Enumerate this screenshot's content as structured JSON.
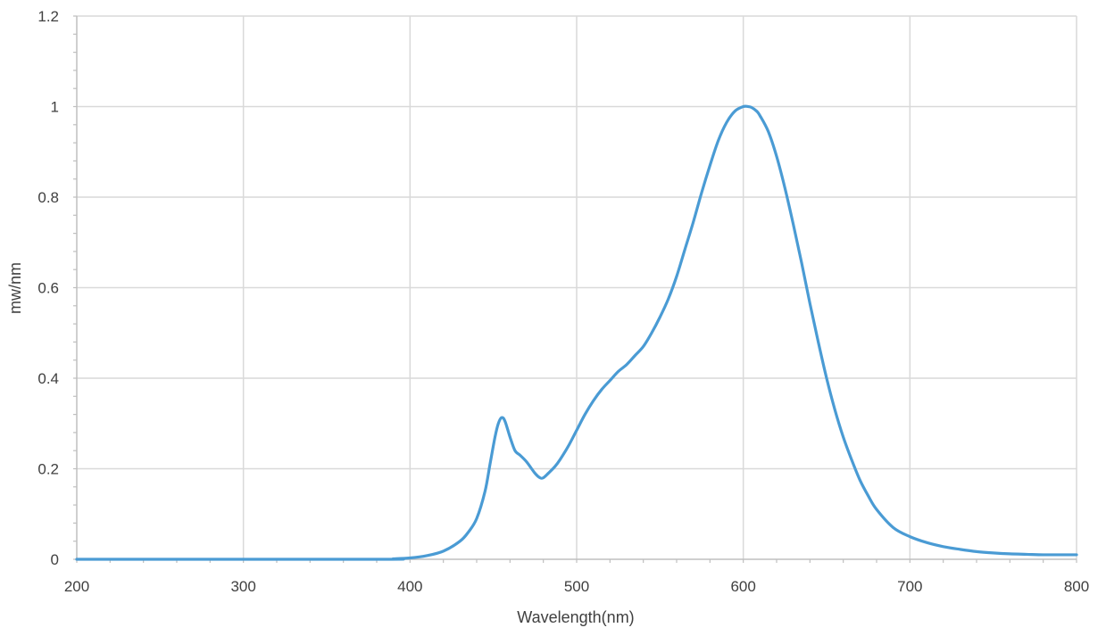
{
  "chart_data": {
    "type": "line",
    "title": "",
    "xlabel": "Wavelength(nm)",
    "ylabel": "mw/nm",
    "xlim": [
      200,
      800
    ],
    "ylim": [
      0,
      1.2
    ],
    "x_ticks": [
      200,
      300,
      400,
      500,
      600,
      700,
      800
    ],
    "x_tick_labels": [
      "200",
      "300",
      "400",
      "500",
      "600",
      "700",
      "800"
    ],
    "y_ticks": [
      0,
      0.2,
      0.4,
      0.6,
      0.8,
      1,
      1.2
    ],
    "y_tick_labels": [
      "0",
      "0.2",
      "0.4",
      "0.6",
      "0.8",
      "1",
      "1.2"
    ],
    "grid": true,
    "legend": "none",
    "line_color": "#4a9bd4",
    "series": [
      {
        "x": [
          200,
          380,
          390,
          400,
          410,
          420,
          430,
          435,
          440,
          445,
          448,
          451,
          453,
          455,
          457,
          460,
          463,
          466,
          470,
          475,
          478,
          480,
          483,
          487,
          490,
          495,
          500,
          505,
          510,
          515,
          520,
          525,
          530,
          535,
          540,
          545,
          550,
          555,
          560,
          565,
          570,
          575,
          580,
          585,
          590,
          595,
          600,
          603,
          605,
          608,
          610,
          615,
          620,
          625,
          630,
          635,
          640,
          645,
          650,
          655,
          660,
          665,
          670,
          675,
          680,
          690,
          700,
          710,
          720,
          730,
          740,
          750,
          760,
          770,
          780,
          790,
          800
        ],
        "y": [
          0,
          0,
          0.001,
          0.003,
          0.008,
          0.018,
          0.04,
          0.06,
          0.09,
          0.15,
          0.21,
          0.27,
          0.3,
          0.313,
          0.305,
          0.27,
          0.24,
          0.23,
          0.215,
          0.19,
          0.18,
          0.18,
          0.19,
          0.205,
          0.22,
          0.25,
          0.285,
          0.32,
          0.35,
          0.375,
          0.395,
          0.415,
          0.43,
          0.45,
          0.47,
          0.5,
          0.535,
          0.575,
          0.625,
          0.685,
          0.745,
          0.81,
          0.87,
          0.925,
          0.965,
          0.99,
          1.0,
          1.0,
          0.998,
          0.99,
          0.98,
          0.945,
          0.89,
          0.82,
          0.74,
          0.655,
          0.565,
          0.48,
          0.4,
          0.33,
          0.27,
          0.22,
          0.175,
          0.14,
          0.11,
          0.07,
          0.05,
          0.037,
          0.028,
          0.022,
          0.017,
          0.014,
          0.012,
          0.011,
          0.01,
          0.01,
          0.01
        ]
      }
    ]
  }
}
